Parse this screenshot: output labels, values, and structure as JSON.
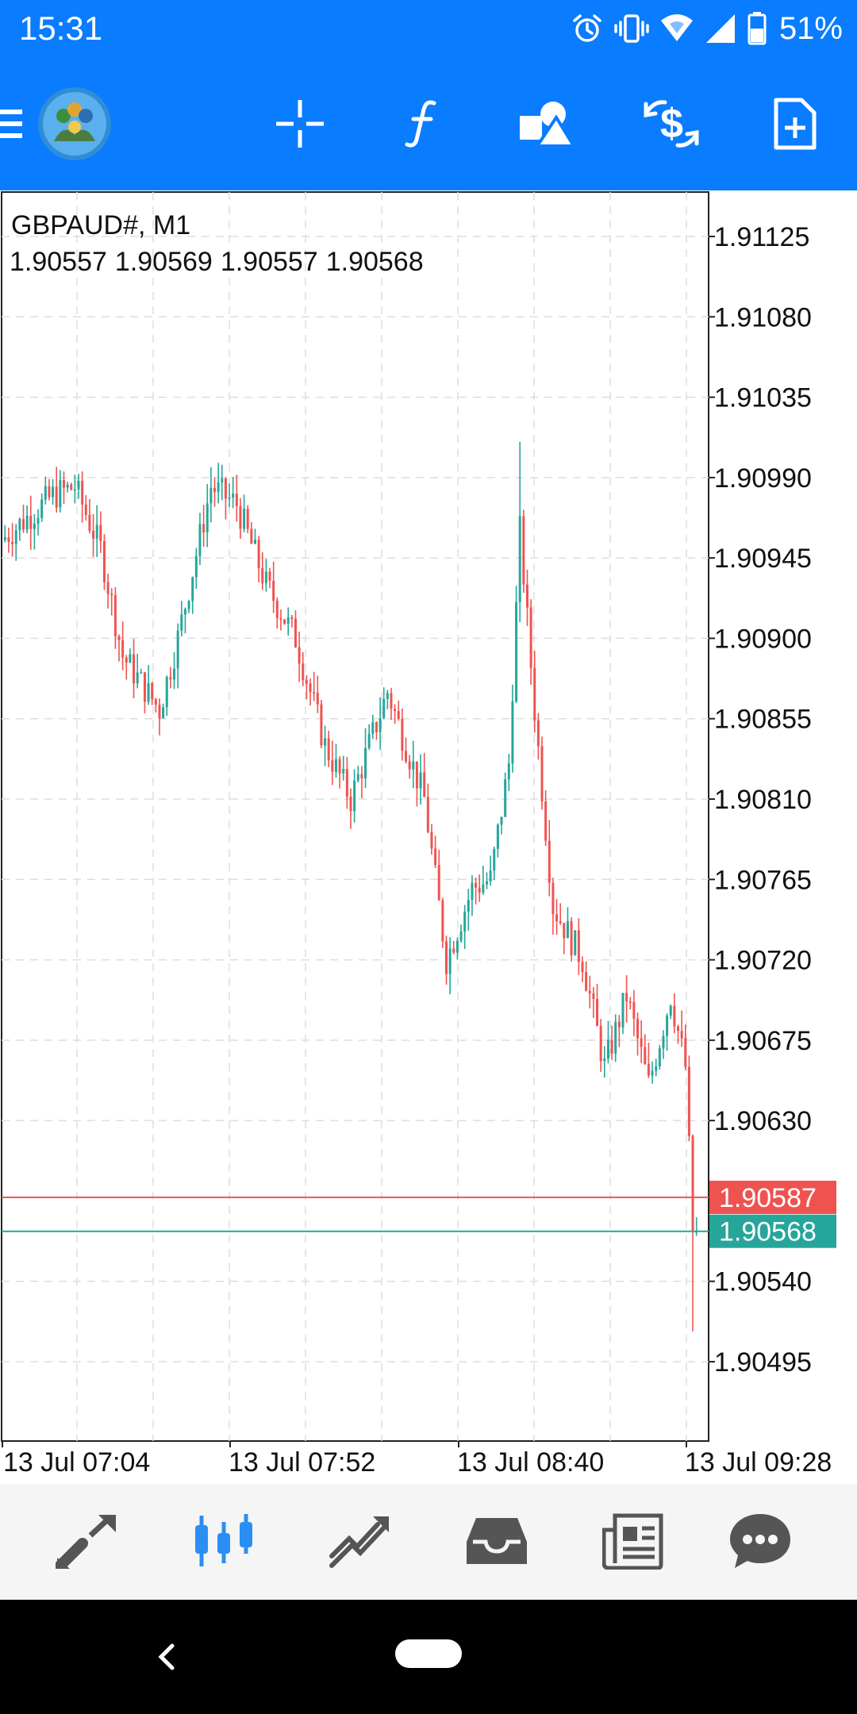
{
  "status_bar": {
    "time": "15:31",
    "battery_percent": "51%",
    "icons": [
      "alarm-icon",
      "vibrate-icon",
      "wifi-icon",
      "signal-icon",
      "battery-icon"
    ]
  },
  "toolbar": {
    "icons": [
      "menu-icon",
      "app-logo",
      "crosshair-icon",
      "indicators-icon",
      "objects-icon",
      "trade-icon",
      "new-order-icon"
    ]
  },
  "chart": {
    "symbol": "GBPAUD#, M1",
    "ohlc": [
      "1.90557",
      "1.90569",
      "1.90557",
      "1.90568"
    ],
    "ask_price": "1.90587",
    "bid_price": "1.90568",
    "colors": {
      "bull": "#26a69a",
      "bear": "#ef5350",
      "ask_line": "#ef5350",
      "bid_line": "#26a69a",
      "grid": "#dddddd"
    }
  },
  "chart_data": {
    "type": "candlestick",
    "price_ticks": [
      "1.91125",
      "1.91080",
      "1.91035",
      "1.90990",
      "1.90945",
      "1.90900",
      "1.90855",
      "1.90810",
      "1.90765",
      "1.90720",
      "1.90675",
      "1.90630",
      "1.90540",
      "1.90495"
    ],
    "time_ticks": [
      "13 Jul 07:04",
      "13 Jul 07:52",
      "13 Jul 08:40",
      "13 Jul 09:28"
    ],
    "ask": 1.90587,
    "bid": 1.90568,
    "y_range": [
      1.9045,
      1.9115
    ],
    "grid": true
  },
  "bottom_nav": {
    "items": [
      "quotes-icon",
      "chart-icon",
      "trade-icon",
      "history-icon",
      "news-icon",
      "chat-icon"
    ],
    "active": "chart-icon"
  }
}
